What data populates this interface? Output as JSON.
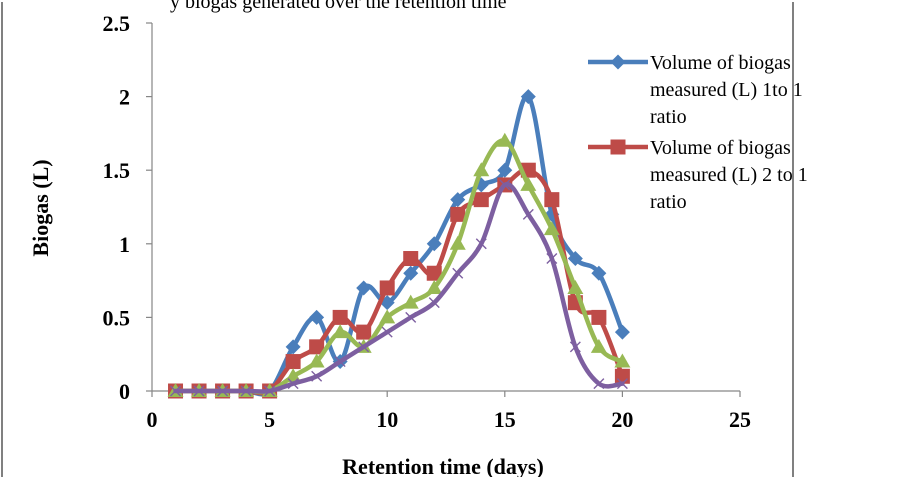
{
  "header_text": "y biogas generated over the retention time",
  "chart_data": {
    "type": "line",
    "xlabel": "Retention time (days)",
    "ylabel": "Biogas (L)",
    "xlim": [
      0,
      25
    ],
    "ylim": [
      0,
      2.5
    ],
    "x_ticks": [
      "0",
      "5",
      "10",
      "15",
      "20",
      "25"
    ],
    "y_ticks": [
      "0",
      "0.5",
      "1",
      "1.5",
      "2",
      "2.5"
    ],
    "grid": false,
    "legend_position": "right",
    "series": [
      {
        "name": "Volume of biogas measured (L) 1to 1 ratio",
        "legend_lines": [
          "Volume of biogas",
          "measured (L) 1to 1",
          "ratio"
        ],
        "color": "#4a7ebb",
        "marker": "diamond",
        "x": [
          1,
          2,
          3,
          4,
          5,
          6,
          7,
          8,
          9,
          10,
          11,
          12,
          13,
          14,
          15,
          16,
          17,
          18,
          19,
          20
        ],
        "y": [
          0,
          0,
          0,
          0,
          0,
          0.3,
          0.5,
          0.2,
          0.7,
          0.6,
          0.8,
          1.0,
          1.3,
          1.4,
          1.5,
          2.0,
          1.2,
          0.9,
          0.8,
          0.4
        ]
      },
      {
        "name": "Volume of biogas measured (L) 2 to 1 ratio",
        "legend_lines": [
          "Volume of biogas",
          "measured (L) 2 to 1",
          "ratio"
        ],
        "color": "#be4b48",
        "marker": "square",
        "x": [
          1,
          2,
          3,
          4,
          5,
          6,
          7,
          8,
          9,
          10,
          11,
          12,
          13,
          14,
          15,
          16,
          17,
          18,
          19,
          20
        ],
        "y": [
          0,
          0,
          0,
          0,
          0,
          0.2,
          0.3,
          0.5,
          0.4,
          0.7,
          0.9,
          0.8,
          1.2,
          1.3,
          1.4,
          1.5,
          1.3,
          0.6,
          0.5,
          0.1
        ]
      },
      {
        "color": "#98b954",
        "marker": "triangle",
        "x": [
          1,
          2,
          3,
          4,
          5,
          6,
          7,
          8,
          9,
          10,
          11,
          12,
          13,
          14,
          15,
          16,
          17,
          18,
          19,
          20
        ],
        "y": [
          0,
          0,
          0,
          0,
          0,
          0.1,
          0.2,
          0.4,
          0.3,
          0.5,
          0.6,
          0.7,
          1.0,
          1.5,
          1.7,
          1.4,
          1.1,
          0.7,
          0.3,
          0.2
        ]
      },
      {
        "color": "#7d5fa0",
        "marker": "x",
        "x": [
          1,
          2,
          3,
          4,
          5,
          6,
          7,
          8,
          9,
          10,
          11,
          12,
          13,
          14,
          15,
          16,
          17,
          18,
          19,
          20
        ],
        "y": [
          0,
          0,
          0,
          0,
          0,
          0.05,
          0.1,
          0.2,
          0.3,
          0.4,
          0.5,
          0.6,
          0.8,
          1.0,
          1.4,
          1.2,
          0.9,
          0.3,
          0.05,
          0.05
        ]
      }
    ]
  }
}
